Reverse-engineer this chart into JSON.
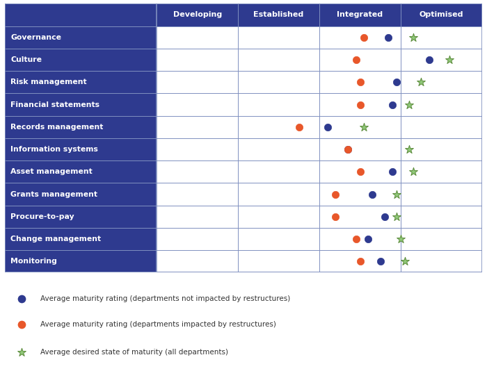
{
  "rows": [
    "Governance",
    "Culture",
    "Risk management",
    "Financial statements",
    "Records management",
    "Information systems",
    "Asset management",
    "Grants management",
    "Procure-to-pay",
    "Change management",
    "Monitoring"
  ],
  "col_labels": [
    "Developing",
    "Established",
    "Integrated",
    "Optimised"
  ],
  "orange_color": "#E8572A",
  "blue_color": "#2E3A8F",
  "star_color_face": "#90C878",
  "star_color_edge": "#5A8A3A",
  "header_bg": "#2E3A8F",
  "header_text": "#FFFFFF",
  "row_label_bg": "#2E3A8F",
  "row_label_text": "#FFFFFF",
  "grid_color": "#8090C0",
  "orange_x": [
    2.55,
    2.45,
    2.5,
    2.5,
    1.75,
    2.35,
    2.5,
    2.2,
    2.2,
    2.45,
    2.5
  ],
  "blue_x": [
    2.85,
    3.35,
    2.95,
    2.9,
    2.1,
    2.35,
    2.9,
    2.65,
    2.8,
    2.6,
    2.75
  ],
  "star_x": [
    3.15,
    3.6,
    3.25,
    3.1,
    2.55,
    3.1,
    3.15,
    2.95,
    2.95,
    3.0,
    3.05
  ],
  "info_sys_overlap": true,
  "legend_items": [
    {
      "label": "Average maturity rating (departments not impacted by restructures)",
      "color": "#2E3A8F",
      "type": "circle"
    },
    {
      "label": "Average maturity rating (departments impacted by restructures)",
      "color": "#E8572A",
      "type": "circle"
    },
    {
      "label": "Average desired state of maturity (all departments)",
      "color_face": "#90C878",
      "color_edge": "#5A8A3A",
      "type": "star"
    }
  ]
}
